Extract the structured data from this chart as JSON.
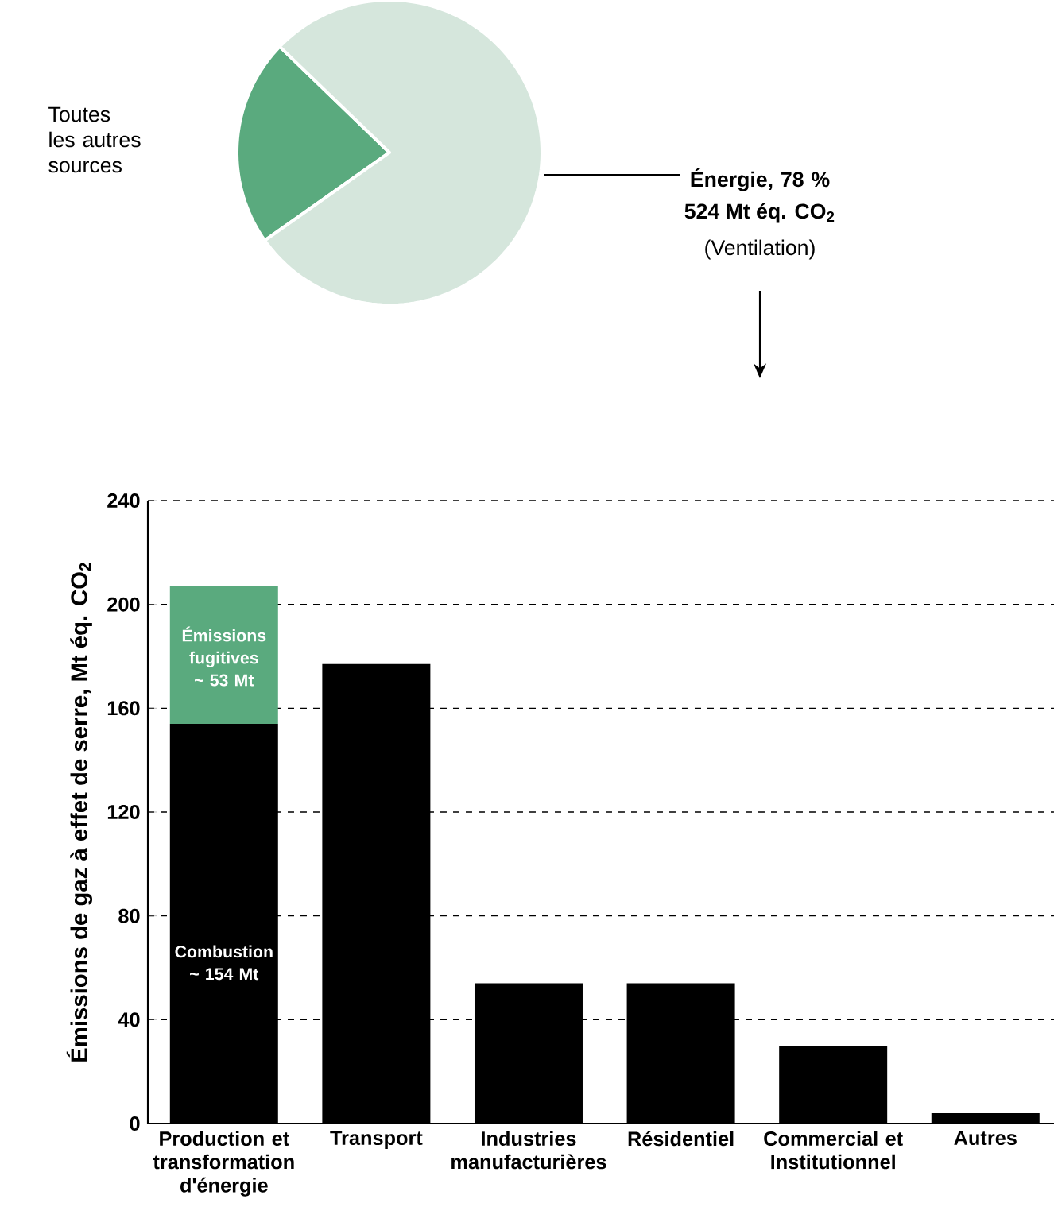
{
  "chart_data": [
    {
      "type": "pie",
      "categories": [
        "Toutes les autres sources",
        "Énergie,  78 %"
      ],
      "values": [
        22,
        78
      ],
      "colors": [
        "#5aaa7e",
        "#d5e6dc"
      ],
      "annotations": [
        "524 Mt éq. CO$_{2}$",
        "(Ventilation)"
      ]
    },
    {
      "type": "bar",
      "stacked": true,
      "ylabel": "Émissions de gaz à effet de serre, Mt éq. CO$_{2}$",
      "categories": [
        "Production et transformation d'énergie",
        "Transport",
        "Industries manufacturières",
        "Résidentiel",
        "Commercial et Institutionnel",
        "Autres"
      ],
      "series": [
        {
          "color": "#000000",
          "values": [
            154,
            177,
            54,
            54,
            30,
            4
          ]
        },
        {
          "color": "#5aaa7e",
          "values": [
            53,
            null,
            null,
            null,
            null,
            null
          ]
        }
      ],
      "ylim": [
        0,
        240
      ],
      "yticks": [
        0,
        40,
        80,
        120,
        160,
        200,
        240
      ],
      "grid": "y",
      "annotations": [
        "Émissions fugitives ~ 53 Mt",
        "Combustion ~ 154 Mt"
      ]
    }
  ]
}
